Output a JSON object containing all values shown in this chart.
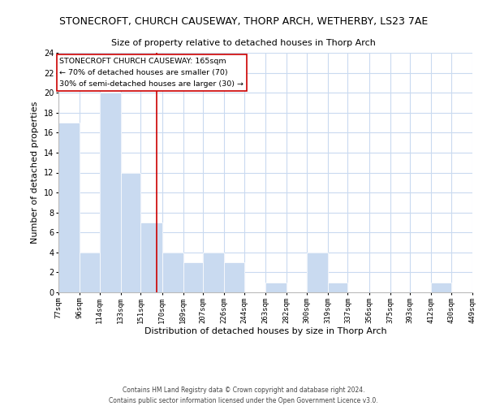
{
  "title": "STONECROFT, CHURCH CAUSEWAY, THORP ARCH, WETHERBY, LS23 7AE",
  "subtitle": "Size of property relative to detached houses in Thorp Arch",
  "xlabel": "Distribution of detached houses by size in Thorp Arch",
  "ylabel": "Number of detached properties",
  "bar_edges": [
    77,
    96,
    114,
    133,
    151,
    170,
    189,
    207,
    226,
    244,
    263,
    282,
    300,
    319,
    337,
    356,
    375,
    393,
    412,
    430,
    449
  ],
  "bar_heights": [
    17,
    4,
    20,
    12,
    7,
    4,
    3,
    4,
    3,
    0,
    1,
    0,
    4,
    1,
    0,
    0,
    0,
    0,
    1,
    0
  ],
  "bar_color": "#c9daf0",
  "bar_edge_color": "#ffffff",
  "grid_color": "#c9daf0",
  "background_color": "#ffffff",
  "ylim": [
    0,
    24
  ],
  "yticks": [
    0,
    2,
    4,
    6,
    8,
    10,
    12,
    14,
    16,
    18,
    20,
    22,
    24
  ],
  "ref_line_x": 165,
  "ref_line_color": "#cc0000",
  "annotation_title": "STONECROFT CHURCH CAUSEWAY: 165sqm",
  "annotation_line1": "← 70% of detached houses are smaller (70)",
  "annotation_line2": "30% of semi-detached houses are larger (30) →",
  "annotation_box_color": "#ffffff",
  "annotation_box_edge_color": "#cc0000",
  "footer_line1": "Contains HM Land Registry data © Crown copyright and database right 2024.",
  "footer_line2": "Contains public sector information licensed under the Open Government Licence v3.0.",
  "tick_labels": [
    "77sqm",
    "96sqm",
    "114sqm",
    "133sqm",
    "151sqm",
    "170sqm",
    "189sqm",
    "207sqm",
    "226sqm",
    "244sqm",
    "263sqm",
    "282sqm",
    "300sqm",
    "319sqm",
    "337sqm",
    "356sqm",
    "375sqm",
    "393sqm",
    "412sqm",
    "430sqm",
    "449sqm"
  ]
}
